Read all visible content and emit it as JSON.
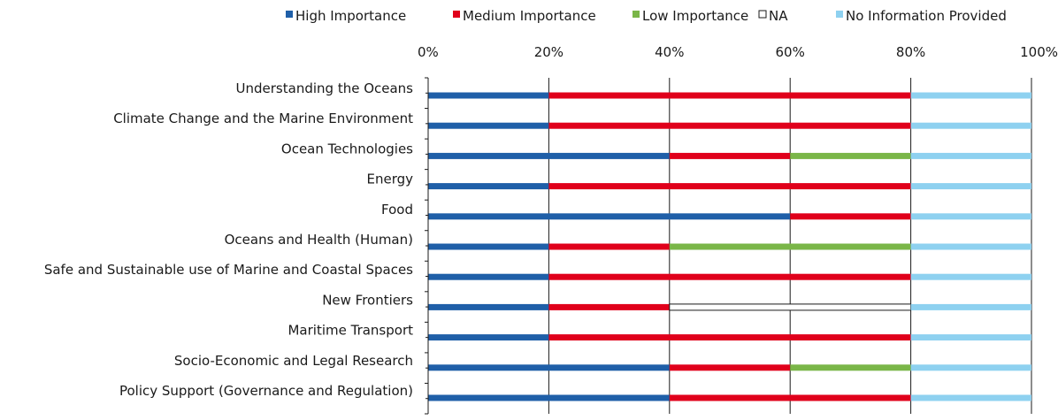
{
  "chart_data": {
    "type": "bar",
    "orientation": "horizontal",
    "stacked": true,
    "percent_scale": true,
    "xlim": [
      0,
      100
    ],
    "x_ticks": [
      "0%",
      "20%",
      "40%",
      "60%",
      "80%",
      "100%"
    ],
    "x_axis_position": "top",
    "grid": true,
    "legend_position": "top",
    "categories": [
      "Understanding the Oceans",
      "Climate Change and the Marine Environment",
      "Ocean Technologies",
      "Energy",
      "Food",
      "Oceans and Health (Human)",
      "Safe and Sustainable use of Marine and Coastal Spaces",
      "New Frontiers",
      "Maritime Transport",
      "Socio-Economic and Legal Research",
      "Policy Support (Governance and Regulation)"
    ],
    "series": [
      {
        "name": "High Importance",
        "color": "#1f5fa8",
        "legend_marker": "filled",
        "values": [
          20,
          20,
          40,
          20,
          60,
          20,
          20,
          20,
          20,
          40,
          40
        ]
      },
      {
        "name": "Medium Importance",
        "color": "#e0001b",
        "legend_marker": "filled",
        "values": [
          60,
          60,
          20,
          60,
          20,
          20,
          60,
          20,
          60,
          20,
          40
        ]
      },
      {
        "name": "Low Importance",
        "color": "#7ab648",
        "legend_marker": "filled",
        "values": [
          0,
          0,
          20,
          0,
          0,
          40,
          0,
          0,
          0,
          20,
          0
        ]
      },
      {
        "name": "NA",
        "color": "#ffffff",
        "legend_marker": "outline",
        "values": [
          0,
          0,
          0,
          0,
          0,
          0,
          0,
          40,
          0,
          0,
          0
        ]
      },
      {
        "name": "No Information Provided",
        "color": "#8ed1f0",
        "legend_marker": "filled",
        "values": [
          20,
          20,
          20,
          20,
          20,
          20,
          20,
          20,
          20,
          20,
          20
        ]
      }
    ]
  }
}
